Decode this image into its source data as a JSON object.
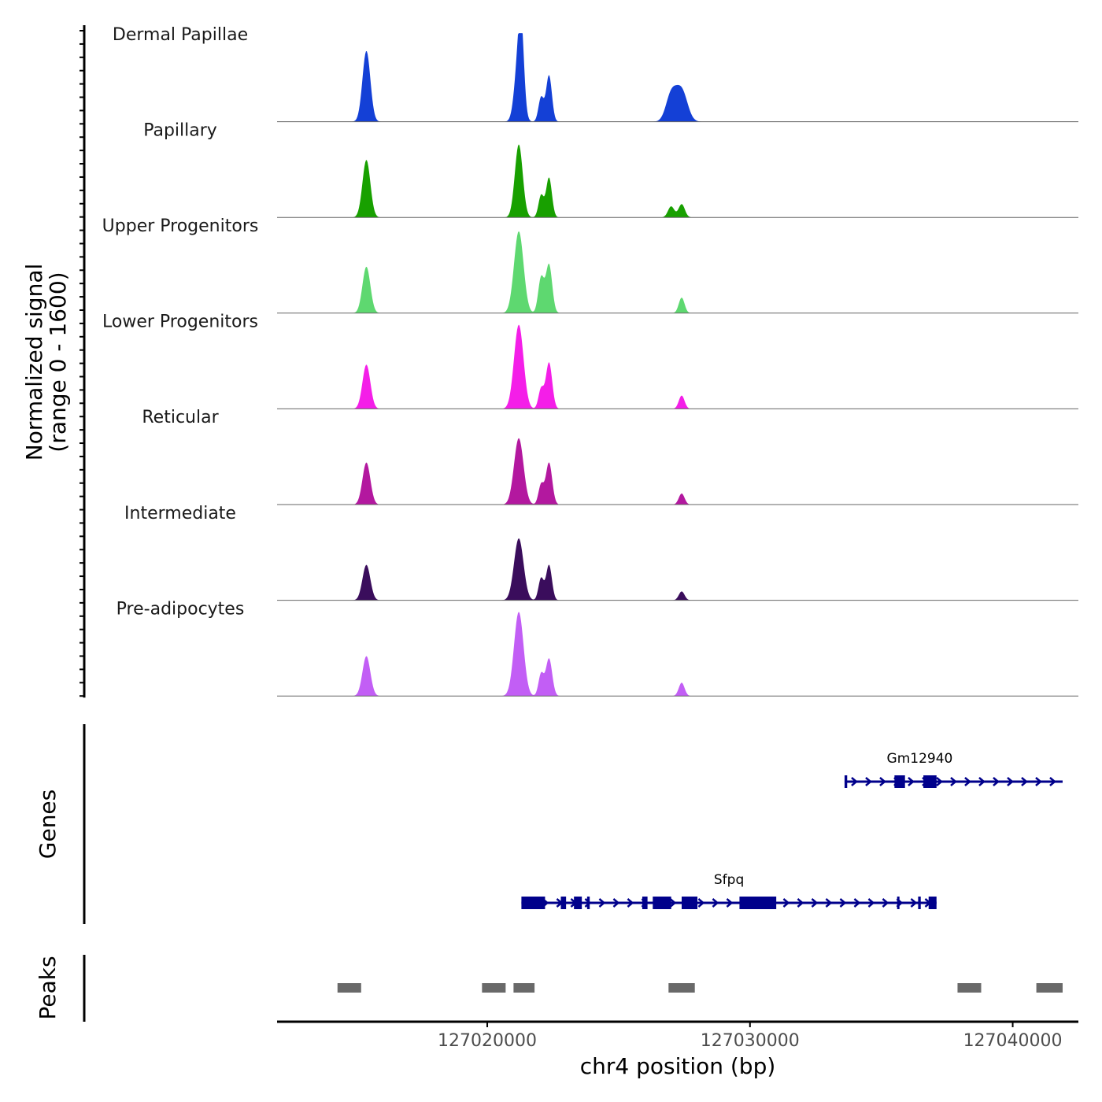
{
  "chart_data": {
    "type": "area",
    "title": "",
    "xlabel": "chr4 position (bp)",
    "xlim": [
      127012000,
      127042500
    ],
    "x_ticks": [
      127020000,
      127030000,
      127040000
    ],
    "x_tick_labels": [
      "127020000",
      "127030000",
      "127040000"
    ],
    "coverage": {
      "ylabel_line1": "Normalized signal",
      "ylabel_line2": "(range 0 - 1600)",
      "ylim": [
        0,
        1600
      ],
      "series": [
        {
          "name": "Dermal Papillae",
          "color": "#1440d6",
          "peaks": [
            [
              127015400,
              1600,
              150
            ],
            [
              127021200,
              1500,
              150
            ],
            [
              127021300,
              1200,
              100
            ],
            [
              127022050,
              550,
              100
            ],
            [
              127022350,
              1050,
              110
            ],
            [
              127027000,
              600,
              200
            ],
            [
              127027400,
              700,
              220
            ]
          ]
        },
        {
          "name": "Papillary",
          "color": "#18a000",
          "peaks": [
            [
              127015400,
              1300,
              150
            ],
            [
              127021200,
              1650,
              150
            ],
            [
              127022050,
              500,
              100
            ],
            [
              127022350,
              900,
              110
            ],
            [
              127027000,
              250,
              120
            ],
            [
              127027400,
              300,
              120
            ]
          ]
        },
        {
          "name": "Upper Progenitors",
          "color": "#5ed870",
          "peaks": [
            [
              127015400,
              1050,
              150
            ],
            [
              127021200,
              1850,
              180
            ],
            [
              127022050,
              800,
              110
            ],
            [
              127022350,
              1100,
              120
            ],
            [
              127027400,
              350,
              110
            ]
          ]
        },
        {
          "name": "Lower Progenitors",
          "color": "#f41ee8",
          "peaks": [
            [
              127015400,
              1000,
              150
            ],
            [
              127021200,
              1900,
              180
            ],
            [
              127022050,
              450,
              100
            ],
            [
              127022350,
              1050,
              120
            ],
            [
              127027400,
              300,
              110
            ]
          ]
        },
        {
          "name": "Reticular",
          "color": "#b3189f",
          "peaks": [
            [
              127015400,
              950,
              150
            ],
            [
              127021200,
              1500,
              180
            ],
            [
              127022050,
              450,
              100
            ],
            [
              127022350,
              950,
              120
            ],
            [
              127027400,
              250,
              110
            ]
          ]
        },
        {
          "name": "Intermediate",
          "color": "#3a0d5c",
          "peaks": [
            [
              127015400,
              800,
              150
            ],
            [
              127021200,
              1400,
              180
            ],
            [
              127022050,
              500,
              100
            ],
            [
              127022350,
              800,
              110
            ],
            [
              127027400,
              200,
              110
            ]
          ]
        },
        {
          "name": "Pre-adipocytes",
          "color": "#c25ef5",
          "peaks": [
            [
              127015400,
              900,
              150
            ],
            [
              127021200,
              1900,
              180
            ],
            [
              127022050,
              500,
              100
            ],
            [
              127022350,
              850,
              120
            ],
            [
              127027400,
              300,
              110
            ]
          ]
        }
      ]
    },
    "genes": {
      "label": "Genes",
      "color": "#00008b",
      "items": [
        {
          "name": "Gm12940",
          "start": 127033600,
          "end": 127041900,
          "exons": [
            [
              127033600,
              127033700
            ],
            [
              127035500,
              127035900
            ],
            [
              127036600,
              127037100
            ]
          ]
        },
        {
          "name": "Sfpq",
          "start": 127021300,
          "end": 127037100,
          "exons": [
            [
              127021300,
              127022200
            ],
            [
              127022800,
              127023000
            ],
            [
              127023300,
              127023600
            ],
            [
              127023800,
              127023900
            ],
            [
              127025900,
              127026100
            ],
            [
              127026300,
              127027000
            ],
            [
              127027400,
              127028000
            ],
            [
              127029600,
              127031000
            ],
            [
              127035600,
              127035650
            ],
            [
              127036400,
              127036500
            ],
            [
              127036800,
              127037100
            ]
          ]
        }
      ]
    },
    "peaks": {
      "label": "Peaks",
      "color": "#696969",
      "regions": [
        [
          127014300,
          127015200
        ],
        [
          127019800,
          127020700
        ],
        [
          127021000,
          127021800
        ],
        [
          127026900,
          127027900
        ],
        [
          127037900,
          127038800
        ],
        [
          127040900,
          127041900
        ]
      ]
    }
  }
}
